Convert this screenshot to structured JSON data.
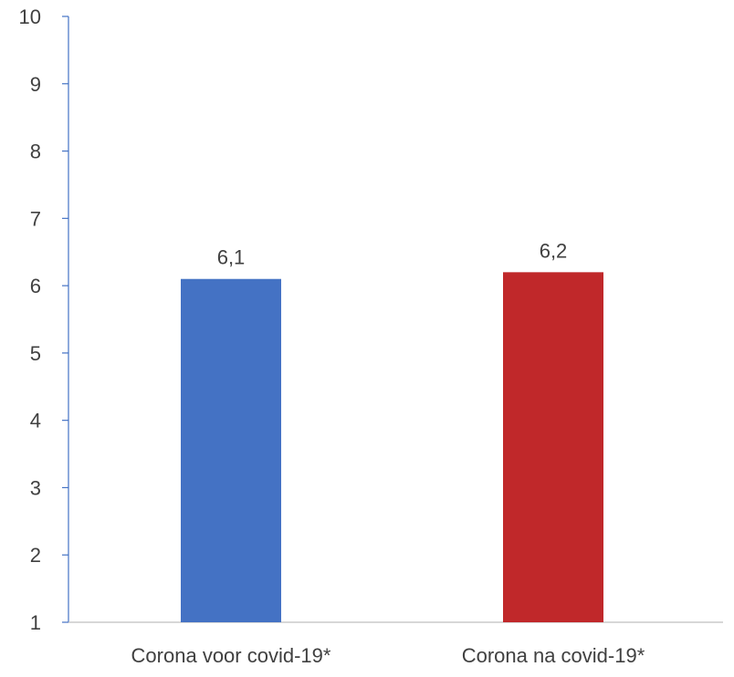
{
  "chart_data": {
    "type": "bar",
    "title": "",
    "xlabel": "",
    "ylabel": "",
    "categories": [
      "Corona voor covid-19*",
      "Corona na covid-19*"
    ],
    "values": [
      6.1,
      6.2
    ],
    "data_labels": [
      "6,1",
      "6,2"
    ],
    "colors": [
      "#4472C4",
      "#C0282A"
    ],
    "ylim": [
      1,
      10
    ],
    "yticks": [
      1,
      2,
      3,
      4,
      5,
      6,
      7,
      8,
      9,
      10
    ],
    "grid": false,
    "axis_color": "#4472C4"
  }
}
